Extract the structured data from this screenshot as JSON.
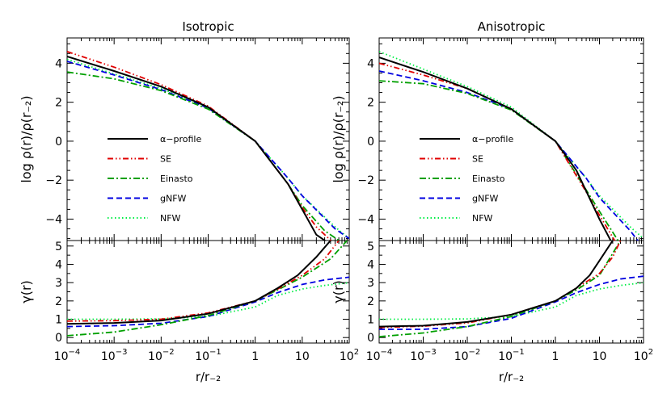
{
  "chart_data": {
    "type": "line",
    "xlabel": "r/r₋₂",
    "x_scale": "log",
    "xlim": [
      0.0001,
      100
    ],
    "x_ticks": [
      {
        "value": 0.0001,
        "base": "10",
        "exp": "−4"
      },
      {
        "value": 0.001,
        "base": "10",
        "exp": "−3"
      },
      {
        "value": 0.01,
        "base": "10",
        "exp": "−2"
      },
      {
        "value": 0.1,
        "base": "10",
        "exp": "−1"
      },
      {
        "value": 1,
        "base": "1",
        "exp": ""
      },
      {
        "value": 10,
        "base": "10",
        "exp": ""
      },
      {
        "value": 100,
        "base": "10",
        "exp": "2"
      }
    ],
    "top_ylabel": "log ρ(r)/ρ(r₋₂)",
    "top_ylim": [
      -5.1,
      5.3
    ],
    "top_yticks": [
      "−4",
      "−2",
      "0",
      "2",
      "4"
    ],
    "top_ytick_values": [
      -4,
      -2,
      0,
      2,
      4
    ],
    "bottom_ylabel": "γ(r)",
    "bottom_ylim": [
      -0.3,
      5.3
    ],
    "bottom_yticks": [
      "0",
      "1",
      "2",
      "3",
      "4",
      "5"
    ],
    "bottom_ytick_values": [
      0,
      1,
      2,
      3,
      4,
      5
    ],
    "legend_position": "center-left",
    "legend": [
      {
        "label": "α−profile",
        "color": "#000000",
        "dash": "solid"
      },
      {
        "label": "SE",
        "color": "#e00000",
        "dash": "dash-dot-dot"
      },
      {
        "label": "Einasto",
        "color": "#00a000",
        "dash": "dash-dot"
      },
      {
        "label": "gNFW",
        "color": "#0000e0",
        "dash": "dashed"
      },
      {
        "label": "NFW",
        "color": "#00ee44",
        "dash": "dotted"
      }
    ],
    "panels": [
      {
        "title": "Isotropic",
        "series": [
          {
            "name": "α−profile",
            "color": "#000000",
            "density": [
              [
                0.0001,
                4.35
              ],
              [
                0.001,
                3.6
              ],
              [
                0.01,
                2.8
              ],
              [
                0.1,
                1.75
              ],
              [
                1,
                0.0
              ],
              [
                5,
                -2.2
              ],
              [
                10,
                -3.5
              ],
              [
                20,
                -4.8
              ],
              [
                40,
                -5.3
              ]
            ],
            "gamma": [
              [
                0.0001,
                0.75
              ],
              [
                0.001,
                0.8
              ],
              [
                0.01,
                0.93
              ],
              [
                0.1,
                1.3
              ],
              [
                1,
                2.0
              ],
              [
                3,
                2.7
              ],
              [
                8,
                3.4
              ],
              [
                20,
                4.4
              ],
              [
                40,
                5.3
              ]
            ]
          },
          {
            "name": "SE",
            "color": "#e00000",
            "density": [
              [
                0.0001,
                4.6
              ],
              [
                0.001,
                3.8
              ],
              [
                0.01,
                2.9
              ],
              [
                0.1,
                1.8
              ],
              [
                1,
                0.0
              ],
              [
                5,
                -2.2
              ],
              [
                10,
                -3.4
              ],
              [
                20,
                -4.4
              ],
              [
                50,
                -5.3
              ]
            ],
            "gamma": [
              [
                0.0001,
                0.9
              ],
              [
                0.001,
                0.92
              ],
              [
                0.01,
                1.0
              ],
              [
                0.1,
                1.35
              ],
              [
                1,
                2.0
              ],
              [
                3,
                2.65
              ],
              [
                10,
                3.4
              ],
              [
                30,
                4.3
              ],
              [
                60,
                5.3
              ]
            ]
          },
          {
            "name": "Einasto",
            "color": "#00a000",
            "density": [
              [
                0.0001,
                3.55
              ],
              [
                0.001,
                3.2
              ],
              [
                0.01,
                2.6
              ],
              [
                0.1,
                1.65
              ],
              [
                1,
                0.0
              ],
              [
                5,
                -2.2
              ],
              [
                10,
                -3.3
              ],
              [
                30,
                -4.6
              ],
              [
                80,
                -5.3
              ]
            ],
            "gamma": [
              [
                0.0001,
                0.1
              ],
              [
                0.001,
                0.3
              ],
              [
                0.01,
                0.7
              ],
              [
                0.1,
                1.2
              ],
              [
                1,
                2.0
              ],
              [
                3,
                2.6
              ],
              [
                10,
                3.3
              ],
              [
                40,
                4.3
              ],
              [
                90,
                5.3
              ]
            ]
          },
          {
            "name": "gNFW",
            "color": "#0000e0",
            "density": [
              [
                0.0001,
                4.1
              ],
              [
                0.001,
                3.4
              ],
              [
                0.01,
                2.65
              ],
              [
                0.1,
                1.7
              ],
              [
                1,
                0.0
              ],
              [
                5,
                -1.9
              ],
              [
                10,
                -2.8
              ],
              [
                50,
                -4.5
              ],
              [
                100,
                -5.0
              ]
            ],
            "gamma": [
              [
                0.0001,
                0.6
              ],
              [
                0.001,
                0.65
              ],
              [
                0.01,
                0.78
              ],
              [
                0.1,
                1.15
              ],
              [
                1,
                1.95
              ],
              [
                3,
                2.45
              ],
              [
                10,
                2.9
              ],
              [
                30,
                3.15
              ],
              [
                100,
                3.3
              ]
            ]
          },
          {
            "name": "NFW",
            "color": "#00ee44",
            "density": [
              [
                0.0001,
                4.2
              ],
              [
                0.001,
                3.45
              ],
              [
                0.01,
                2.7
              ],
              [
                0.1,
                1.75
              ],
              [
                1,
                0.0
              ],
              [
                5,
                -1.9
              ],
              [
                10,
                -2.8
              ],
              [
                50,
                -4.4
              ],
              [
                100,
                -5.0
              ]
            ],
            "gamma": [
              [
                0.0001,
                1.0
              ],
              [
                0.001,
                1.0
              ],
              [
                0.01,
                1.02
              ],
              [
                0.1,
                1.15
              ],
              [
                1,
                1.67
              ],
              [
                3,
                2.3
              ],
              [
                10,
                2.65
              ],
              [
                30,
                2.85
              ],
              [
                100,
                3.0
              ]
            ]
          }
        ]
      },
      {
        "title": "Anisotropic",
        "series": [
          {
            "name": "α−profile",
            "color": "#000000",
            "density": [
              [
                0.0001,
                4.3
              ],
              [
                0.001,
                3.55
              ],
              [
                0.01,
                2.7
              ],
              [
                0.1,
                1.65
              ],
              [
                1,
                0.0
              ],
              [
                3,
                -1.5
              ],
              [
                10,
                -4.0
              ],
              [
                20,
                -5.3
              ]
            ],
            "gamma": [
              [
                0.0001,
                0.6
              ],
              [
                0.001,
                0.65
              ],
              [
                0.01,
                0.85
              ],
              [
                0.1,
                1.25
              ],
              [
                1,
                2.0
              ],
              [
                3,
                2.7
              ],
              [
                6,
                3.4
              ],
              [
                10,
                4.2
              ],
              [
                20,
                5.3
              ]
            ]
          },
          {
            "name": "SE",
            "color": "#e00000",
            "density": [
              [
                0.0001,
                4.0
              ],
              [
                0.001,
                3.4
              ],
              [
                0.01,
                2.7
              ],
              [
                0.1,
                1.65
              ],
              [
                1,
                0.0
              ],
              [
                5,
                -2.6
              ],
              [
                10,
                -3.8
              ],
              [
                25,
                -5.3
              ]
            ],
            "gamma": [
              [
                0.0001,
                0.55
              ],
              [
                0.001,
                0.62
              ],
              [
                0.01,
                0.8
              ],
              [
                0.1,
                1.25
              ],
              [
                1,
                2.0
              ],
              [
                3,
                2.7
              ],
              [
                10,
                3.5
              ],
              [
                20,
                4.4
              ],
              [
                30,
                5.3
              ]
            ]
          },
          {
            "name": "Einasto",
            "color": "#00a000",
            "density": [
              [
                0.0001,
                3.1
              ],
              [
                0.001,
                2.95
              ],
              [
                0.01,
                2.45
              ],
              [
                0.1,
                1.6
              ],
              [
                1,
                0.0
              ],
              [
                5,
                -2.5
              ],
              [
                10,
                -3.6
              ],
              [
                30,
                -5.3
              ]
            ],
            "gamma": [
              [
                0.0001,
                0.05
              ],
              [
                0.001,
                0.25
              ],
              [
                0.01,
                0.6
              ],
              [
                0.1,
                1.15
              ],
              [
                1,
                2.0
              ],
              [
                3,
                2.6
              ],
              [
                10,
                3.4
              ],
              [
                30,
                5.3
              ]
            ]
          },
          {
            "name": "gNFW",
            "color": "#0000e0",
            "density": [
              [
                0.0001,
                3.6
              ],
              [
                0.001,
                3.1
              ],
              [
                0.01,
                2.5
              ],
              [
                0.1,
                1.65
              ],
              [
                1,
                0.0
              ],
              [
                5,
                -1.9
              ],
              [
                10,
                -2.9
              ],
              [
                50,
                -4.6
              ],
              [
                80,
                -5.2
              ]
            ],
            "gamma": [
              [
                0.0001,
                0.45
              ],
              [
                0.001,
                0.45
              ],
              [
                0.01,
                0.6
              ],
              [
                0.1,
                1.05
              ],
              [
                1,
                1.95
              ],
              [
                3,
                2.45
              ],
              [
                10,
                2.9
              ],
              [
                30,
                3.2
              ],
              [
                100,
                3.35
              ]
            ]
          },
          {
            "name": "NFW",
            "color": "#00ee44",
            "density": [
              [
                0.0001,
                4.6
              ],
              [
                0.001,
                3.7
              ],
              [
                0.01,
                2.8
              ],
              [
                0.1,
                1.75
              ],
              [
                1,
                0.0
              ],
              [
                5,
                -1.9
              ],
              [
                10,
                -2.8
              ],
              [
                50,
                -4.4
              ],
              [
                100,
                -5.0
              ]
            ],
            "gamma": [
              [
                0.0001,
                1.0
              ],
              [
                0.001,
                1.0
              ],
              [
                0.01,
                1.02
              ],
              [
                0.1,
                1.15
              ],
              [
                1,
                1.67
              ],
              [
                3,
                2.3
              ],
              [
                10,
                2.65
              ],
              [
                30,
                2.85
              ],
              [
                100,
                3.0
              ]
            ]
          }
        ]
      }
    ]
  }
}
